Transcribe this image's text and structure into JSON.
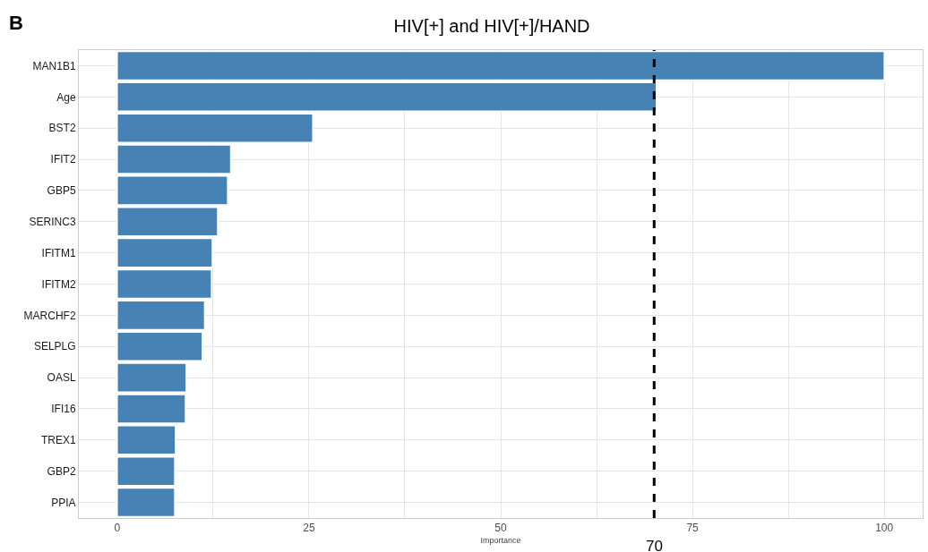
{
  "chart_data": {
    "type": "bar",
    "orientation": "horizontal",
    "title": "HIV[+] and HIV[+]/HAND",
    "xlabel": "Importance",
    "categories": [
      "MAN1B1",
      "Age",
      "BST2",
      "IFIT2",
      "GBP5",
      "SERINC3",
      "IFITM1",
      "IFITM2",
      "MARCHF2",
      "SELPLG",
      "OASL",
      "IFI16",
      "TREX1",
      "GBP2",
      "PPIA"
    ],
    "values": [
      100,
      70.3,
      25.5,
      14.8,
      14.4,
      13.1,
      12.4,
      12.3,
      11.4,
      11.1,
      9.0,
      8.9,
      7.6,
      7.5,
      7.5
    ],
    "color": "#4682b4",
    "xlim": [
      -5,
      105
    ],
    "xticks": [
      0,
      {
        "value": 12.5,
        "label": null
      },
      25,
      {
        "value": 37.5,
        "label": null
      },
      50,
      {
        "value": 62.5,
        "label": null
      },
      75,
      {
        "value": 87.5,
        "label": null
      },
      100
    ],
    "grid": true,
    "ref_lines": [
      {
        "axis": "x",
        "value": 70,
        "label": "70",
        "color": "#000000",
        "line_style": "dashed"
      }
    ],
    "annotations": [
      "B"
    ]
  }
}
